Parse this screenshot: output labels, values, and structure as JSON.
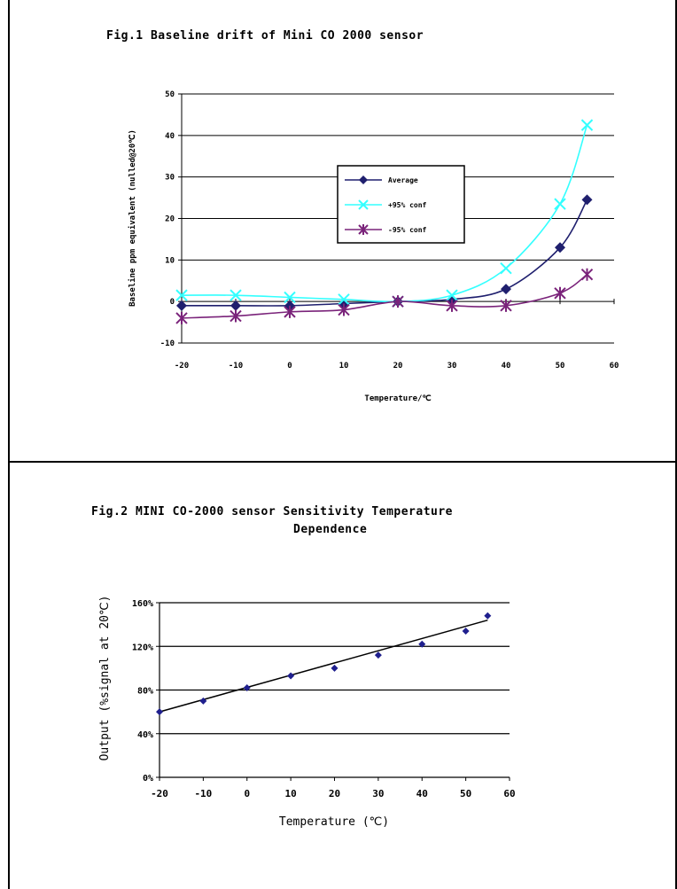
{
  "charts": [
    {
      "title": "Fig.1 Baseline drift of Mini CO 2000 sensor"
    },
    {
      "title_line1": "Fig.2 MINI CO-2000 sensor Sensitivity Temperature",
      "title_line2": "Dependence"
    }
  ],
  "chart_data": [
    {
      "type": "line",
      "title": "Fig.1 Baseline drift of Mini CO 2000 sensor",
      "xlabel": "Temperature/℃",
      "ylabel": "Baseline ppm equivalent (nulled@20℃)",
      "xlim": [
        -20,
        60
      ],
      "ylim": [
        -10,
        50
      ],
      "xticks": [
        -20,
        -10,
        0,
        10,
        20,
        30,
        40,
        50,
        60
      ],
      "yticks": [
        -10,
        0,
        10,
        20,
        30,
        40,
        50
      ],
      "grid": "horizontal",
      "legend_position": "center-right",
      "x": [
        -20,
        -10,
        0,
        10,
        20,
        30,
        40,
        50,
        55
      ],
      "series": [
        {
          "name": "Average",
          "values": [
            -1,
            -1,
            -1,
            -0.5,
            0,
            0.5,
            3,
            13,
            24.5
          ],
          "color": "#1f1f6e",
          "marker": "diamond"
        },
        {
          "name": "+95% conf",
          "values": [
            1.5,
            1.5,
            1,
            0.5,
            0,
            1.5,
            8,
            23.5,
            42.5
          ],
          "color": "#33ffff",
          "marker": "x"
        },
        {
          "name": "-95% conf",
          "values": [
            -4,
            -3.5,
            -2.5,
            -2,
            0,
            -1,
            -1,
            2,
            6.5
          ],
          "color": "#7a237a",
          "marker": "star"
        }
      ]
    },
    {
      "type": "scatter",
      "title": "Fig.2 MINI CO-2000 sensor Sensitivity Temperature Dependence",
      "xlabel": "Temperature (℃)",
      "ylabel": "Output (%signal at 20℃)",
      "xlim": [
        -20,
        60
      ],
      "ylim": [
        0,
        160
      ],
      "xticks": [
        -20,
        -10,
        0,
        10,
        20,
        30,
        40,
        50,
        60
      ],
      "yticks": [
        0,
        40,
        80,
        120,
        160
      ],
      "ytick_labels": [
        "0%",
        "40%",
        "80%",
        "120%",
        "160%"
      ],
      "grid": "horizontal",
      "x": [
        -20,
        -10,
        0,
        10,
        20,
        30,
        40,
        50,
        55
      ],
      "series": [
        {
          "name": "",
          "values": [
            60,
            70,
            82,
            93,
            100,
            112,
            122,
            134,
            148
          ],
          "color": "#1f1f8e",
          "marker": "diamond"
        }
      ],
      "trendline": {
        "x": [
          -20,
          55
        ],
        "y": [
          60,
          144
        ],
        "color": "#000000"
      }
    }
  ]
}
